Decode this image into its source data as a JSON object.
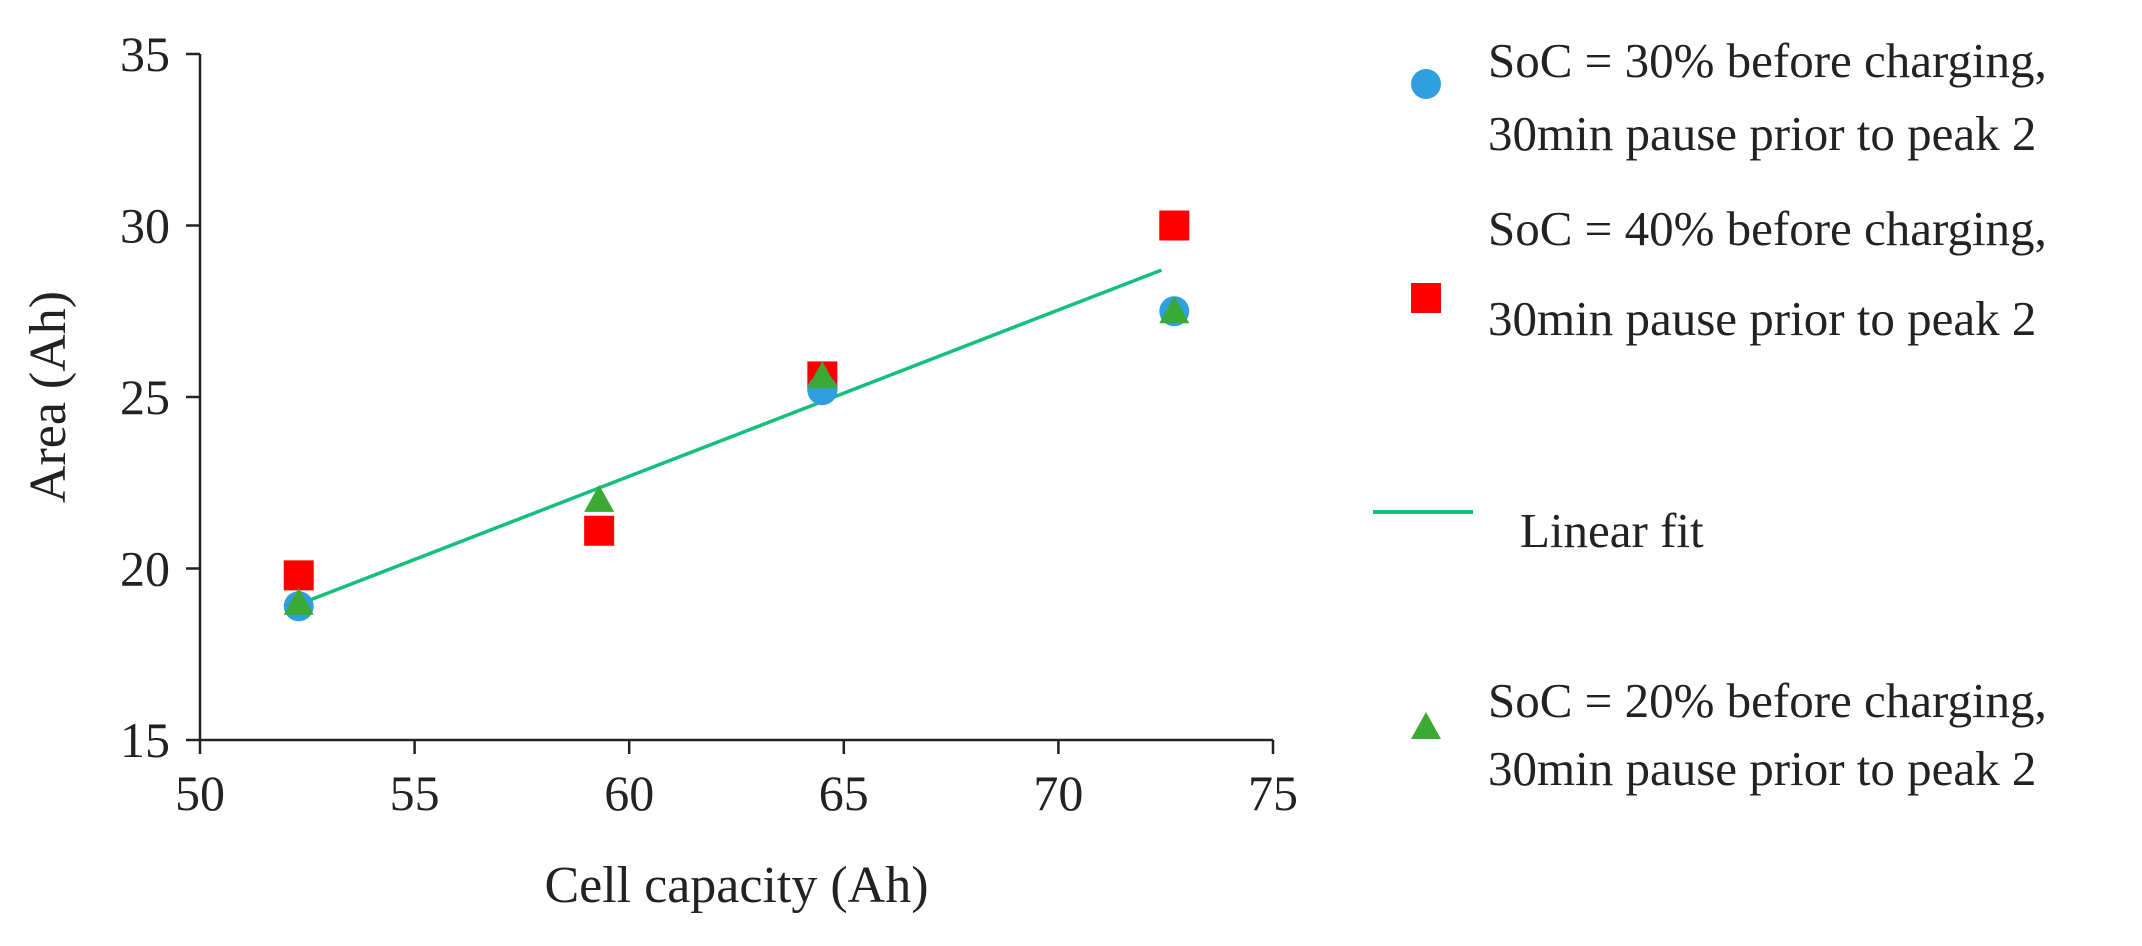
{
  "chart_data": {
    "type": "scatter",
    "title": "",
    "xlabel": "Cell capacity (Ah)",
    "ylabel": "Area (Ah)",
    "xlim": [
      50,
      75
    ],
    "ylim": [
      15,
      35
    ],
    "xticks": [
      50,
      55,
      60,
      65,
      70,
      75
    ],
    "yticks": [
      15,
      20,
      25,
      30,
      35
    ],
    "grid": false,
    "legend_position": "right",
    "colors": {
      "soc30": "#2f9fe0",
      "soc40": "#ff0000",
      "soc20": "#3aaa35",
      "fit": "#13c07a",
      "axis": "#222222"
    },
    "series": [
      {
        "name": "soc30",
        "label_lines": [
          "SoC = 30% before charging,",
          "30min pause prior to peak 2"
        ],
        "marker": "circle",
        "x": [
          52.3,
          64.5,
          72.7
        ],
        "y": [
          18.9,
          25.2,
          27.5
        ]
      },
      {
        "name": "soc40",
        "label_lines": [
          "SoC = 40% before charging,",
          "30min pause prior to peak 2"
        ],
        "marker": "square",
        "x": [
          52.3,
          59.3,
          64.5,
          72.7
        ],
        "y": [
          19.8,
          21.1,
          25.6,
          30.0
        ]
      },
      {
        "name": "fit",
        "label_lines": [
          "Linear fit"
        ],
        "marker": "line",
        "x": [
          52.6,
          72.4
        ],
        "y": [
          19.1,
          28.7
        ]
      },
      {
        "name": "soc20",
        "label_lines": [
          "SoC = 20% before charging,",
          "30min pause prior to peak 2"
        ],
        "marker": "triangle",
        "x": [
          52.3,
          59.3,
          64.5,
          72.7
        ],
        "y": [
          19.0,
          22.0,
          25.6,
          27.5
        ]
      }
    ]
  }
}
